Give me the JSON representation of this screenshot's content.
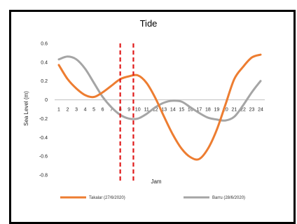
{
  "chart_data": {
    "type": "line",
    "title": "Tide",
    "xlabel": "Jam",
    "ylabel": "Sea Level (m)",
    "x": [
      1,
      2,
      3,
      4,
      5,
      6,
      7,
      8,
      9,
      10,
      11,
      12,
      13,
      14,
      15,
      16,
      17,
      18,
      19,
      20,
      21,
      22,
      23,
      24
    ],
    "ylim": [
      -0.8,
      0.6
    ],
    "yticks": [
      0.6,
      0.4,
      0.2,
      0,
      -0.2,
      -0.4,
      -0.6,
      -0.8
    ],
    "ytick_labels": [
      "0.6",
      "0.4",
      "0.2",
      "0",
      "-0.2",
      "-0.4",
      "-0.6",
      "-0.8"
    ],
    "grid": false,
    "legend_position": "bottom",
    "series": [
      {
        "name": "Takalar (27/6/2020)",
        "color": "#ED7D31",
        "values": [
          0.37,
          0.22,
          0.12,
          0.05,
          0.03,
          0.08,
          0.15,
          0.22,
          0.25,
          0.26,
          0.18,
          0.02,
          -0.18,
          -0.37,
          -0.52,
          -0.61,
          -0.63,
          -0.52,
          -0.32,
          -0.05,
          0.22,
          0.35,
          0.45,
          0.48
        ]
      },
      {
        "name": "Barru (28/6/2020)",
        "color": "#A5A5A5",
        "values": [
          0.43,
          0.46,
          0.43,
          0.33,
          0.18,
          0.03,
          -0.08,
          -0.16,
          -0.2,
          -0.2,
          -0.15,
          -0.08,
          -0.03,
          -0.01,
          -0.02,
          -0.08,
          -0.14,
          -0.19,
          -0.21,
          -0.22,
          -0.18,
          -0.06,
          0.08,
          0.2
        ]
      }
    ],
    "annotations": {
      "vertical_dashed_lines_at_x": [
        8,
        9.5
      ],
      "color": "#E01B1B"
    }
  }
}
